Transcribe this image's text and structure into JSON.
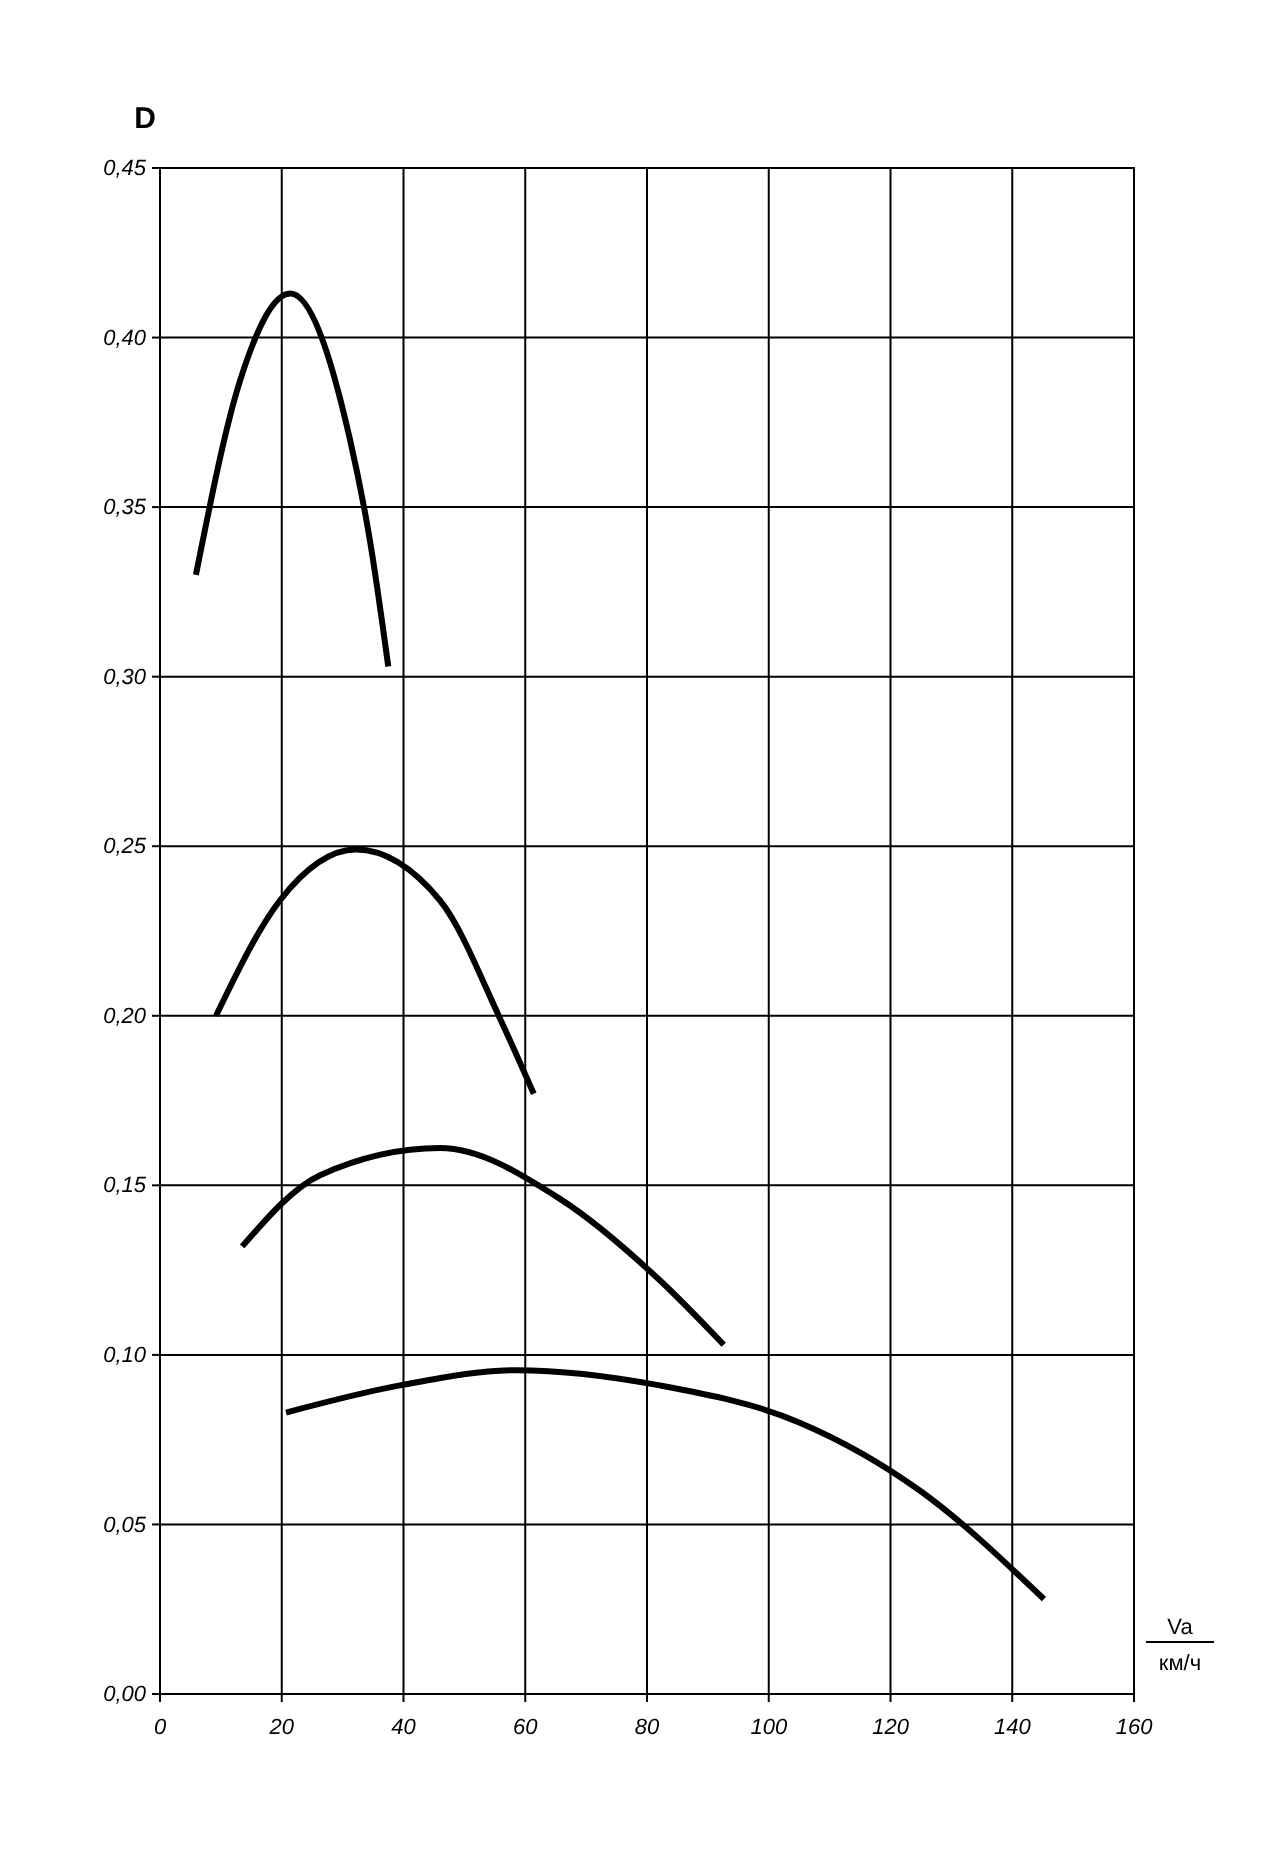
{
  "chart_data": {
    "type": "line",
    "ylabel": "D",
    "xlabel": "Va км/ч",
    "xlim": [
      0,
      160
    ],
    "xticks": [
      0,
      20,
      40,
      60,
      80,
      100,
      120,
      140,
      160
    ],
    "ylim": [
      0,
      0.45
    ],
    "yticks": [
      {
        "value": 0,
        "label": "0,00"
      },
      {
        "value": 0.05,
        "label": "0,05"
      },
      {
        "value": 0.1,
        "label": "0,10"
      },
      {
        "value": 0.15,
        "label": "0,15"
      },
      {
        "value": 0.2,
        "label": "0,20"
      },
      {
        "value": 0.25,
        "label": "0,25"
      },
      {
        "value": 0.3,
        "label": "0,30"
      },
      {
        "value": 0.35,
        "label": "0,35"
      },
      {
        "value": 0.4,
        "label": "0,40"
      },
      {
        "value": 0.45,
        "label": "0,45"
      }
    ],
    "grid": true,
    "line_style": "solid",
    "marker": "none",
    "series": [
      {
        "color": "#000000",
        "x": [
          5.9,
          13.1,
          21.4,
          31.2,
          34.5,
          37.5
        ],
        "values": [
          0.33,
          0.387,
          0.413,
          0.37,
          0.34,
          0.303
        ]
      },
      {
        "color": "#000000",
        "x": [
          9.2,
          19.7,
          32.2,
          46,
          55.9,
          61.4
        ],
        "values": [
          0.2,
          0.234,
          0.249,
          0.234,
          0.199,
          0.177
        ]
      },
      {
        "color": "#000000",
        "x": [
          13.5,
          26.3,
          46,
          65.7,
          82.1,
          92.6
        ],
        "values": [
          0.132,
          0.153,
          0.161,
          0.146,
          0.122,
          0.103
        ]
      },
      {
        "color": "#000000",
        "x": [
          20.7,
          39.4,
          58.5,
          82.1,
          105.1,
          124.8,
          145.2
        ],
        "values": [
          0.083,
          0.091,
          0.0955,
          0.091,
          0.08,
          0.06,
          0.028
        ]
      }
    ]
  }
}
